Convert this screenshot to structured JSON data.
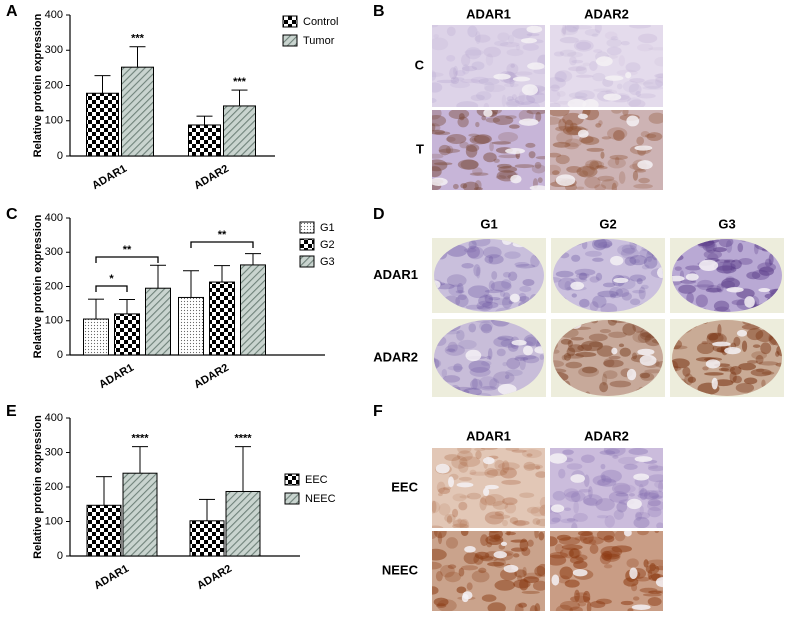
{
  "panel_labels": [
    "A",
    "B",
    "C",
    "D",
    "E",
    "F"
  ],
  "chart_data": [
    {
      "type": "bar",
      "ylabel": "Relative protein expression",
      "categories": [
        "ADAR1",
        "ADAR2"
      ],
      "ylim": [
        0,
        400
      ],
      "yticks": [
        0,
        100,
        200,
        300,
        400
      ],
      "legend": "upper right",
      "series": [
        {
          "name": "Control",
          "color": "#000000",
          "pattern": "checker",
          "values": [
            178,
            88
          ],
          "errors": [
            50,
            25
          ]
        },
        {
          "name": "Tumor",
          "color": "#8fa39a",
          "pattern": "hatch",
          "values": [
            252,
            142
          ],
          "errors": [
            58,
            45
          ],
          "annotations": [
            "***",
            "***"
          ]
        }
      ]
    },
    {
      "type": "bar",
      "ylabel": "Relative protein expression",
      "categories": [
        "ADAR1",
        "ADAR2"
      ],
      "ylim": [
        0,
        400
      ],
      "yticks": [
        0,
        100,
        200,
        300,
        400
      ],
      "legend": "upper right",
      "series": [
        {
          "name": "G1",
          "color": "#555555",
          "pattern": "dots",
          "values": [
            105,
            168
          ],
          "errors": [
            58,
            78
          ]
        },
        {
          "name": "G2",
          "color": "#000000",
          "pattern": "checker",
          "values": [
            120,
            213
          ],
          "errors": [
            42,
            48
          ]
        },
        {
          "name": "G3",
          "color": "#8fa39a",
          "pattern": "hatch",
          "values": [
            195,
            263
          ],
          "errors": [
            67,
            33
          ]
        }
      ],
      "brackets": [
        "*",
        "**",
        "**"
      ]
    },
    {
      "type": "bar",
      "ylabel": "Relative protein expression",
      "categories": [
        "ADAR1",
        "ADAR2"
      ],
      "ylim": [
        0,
        400
      ],
      "yticks": [
        0,
        100,
        200,
        300,
        400
      ],
      "legend": "upper right",
      "series": [
        {
          "name": "EEC",
          "color": "#000000",
          "pattern": "checker",
          "values": [
            147,
            102
          ],
          "errors": [
            83,
            62
          ]
        },
        {
          "name": "NEEC",
          "color": "#8fa39a",
          "pattern": "hatch",
          "values": [
            240,
            187
          ],
          "errors": [
            77,
            130
          ],
          "annotations": [
            "****",
            "****"
          ]
        }
      ]
    }
  ],
  "images": [
    {
      "columns": [
        "ADAR1",
        "ADAR2"
      ],
      "rows": [
        "C",
        "T"
      ]
    },
    {
      "columns": [
        "G1",
        "G2",
        "G3"
      ],
      "rows": [
        "ADAR1",
        "ADAR2"
      ]
    },
    {
      "columns": [
        "ADAR1",
        "ADAR2"
      ],
      "rows": [
        "EEC",
        "NEEC"
      ]
    }
  ]
}
